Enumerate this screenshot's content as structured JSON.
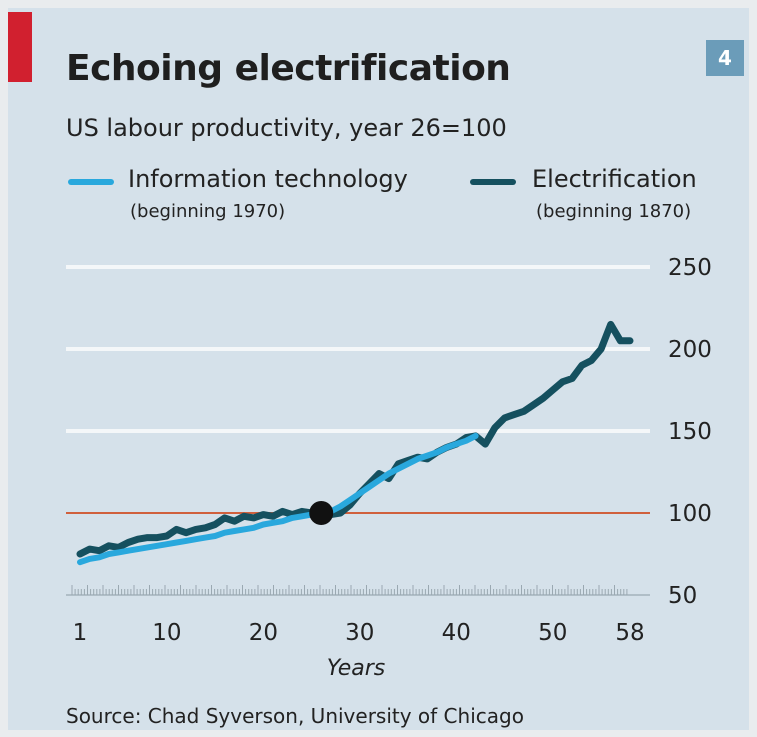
{
  "header": {
    "title": "Echoing electrification",
    "badge": "4",
    "subtitle": "US labour productivity, year 26=100",
    "accent_color": "#d1202f",
    "badge_color": "#6b9cb9"
  },
  "legend": {
    "items": [
      {
        "label": "Information technology",
        "note": "(beginning 1970)",
        "color": "#29a8dd"
      },
      {
        "label": "Electrification",
        "note": "(beginning 1870)",
        "color": "#15505f"
      }
    ]
  },
  "source": "Source: Chad Syverson, University of Chicago",
  "chart_data": {
    "type": "line",
    "xlabel": "Years",
    "ylabel": "",
    "x_ticks": [
      1,
      10,
      20,
      30,
      40,
      50,
      58
    ],
    "y_ticks": [
      50,
      100,
      150,
      200,
      250
    ],
    "xlim": [
      1,
      58
    ],
    "ylim": [
      50,
      250
    ],
    "reference_line": {
      "y": 100,
      "color": "#d0603d"
    },
    "marker": {
      "x": 26,
      "y": 100
    },
    "grid": "horizontal",
    "series": [
      {
        "name": "Information technology",
        "color": "#29a8dd",
        "x": [
          1,
          2,
          3,
          4,
          5,
          6,
          7,
          8,
          9,
          10,
          11,
          12,
          13,
          14,
          15,
          16,
          17,
          18,
          19,
          20,
          21,
          22,
          23,
          24,
          25,
          26,
          27,
          28,
          29,
          30,
          31,
          32,
          33,
          34,
          35,
          36,
          37,
          38,
          39,
          40,
          41,
          42
        ],
        "y": [
          70,
          72,
          73,
          75,
          76,
          77,
          78,
          79,
          80,
          81,
          82,
          83,
          84,
          85,
          86,
          88,
          89,
          90,
          91,
          93,
          94,
          95,
          97,
          98,
          99,
          100,
          101,
          104,
          108,
          112,
          116,
          120,
          124,
          127,
          130,
          133,
          135,
          137,
          140,
          142,
          144,
          147
        ]
      },
      {
        "name": "Electrification",
        "color": "#15505f",
        "x": [
          1,
          2,
          3,
          4,
          5,
          6,
          7,
          8,
          9,
          10,
          11,
          12,
          13,
          14,
          15,
          16,
          17,
          18,
          19,
          20,
          21,
          22,
          23,
          24,
          25,
          26,
          27,
          28,
          29,
          30,
          31,
          32,
          33,
          34,
          35,
          36,
          37,
          38,
          39,
          40,
          41,
          42,
          43,
          44,
          45,
          46,
          47,
          48,
          49,
          50,
          51,
          52,
          53,
          54,
          55,
          56,
          57,
          58
        ],
        "y": [
          75,
          78,
          77,
          80,
          79,
          82,
          84,
          85,
          85,
          86,
          90,
          88,
          90,
          91,
          93,
          97,
          95,
          98,
          97,
          99,
          98,
          101,
          99,
          101,
          100,
          100,
          99,
          100,
          105,
          112,
          118,
          124,
          121,
          130,
          132,
          134,
          133,
          137,
          140,
          142,
          146,
          147,
          142,
          152,
          158,
          160,
          162,
          166,
          170,
          175,
          180,
          182,
          190,
          193,
          200,
          215,
          205,
          205
        ]
      }
    ]
  }
}
